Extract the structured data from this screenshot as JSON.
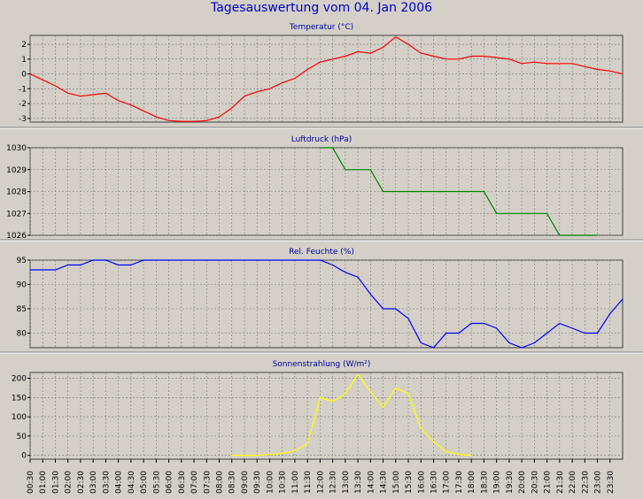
{
  "title": "Tagesauswertung vom 04. Jan 2006",
  "colors": {
    "background": "#d4d0c8",
    "plot_background": "#d4d0c8",
    "grid": "#7a7a7a",
    "temperature": "#ff0000",
    "pressure": "#008000",
    "humidity": "#0000ff",
    "radiation": "#ffff00"
  },
  "x_ticks": [
    "00:30",
    "01:00",
    "01:30",
    "02:00",
    "02:30",
    "03:00",
    "03:30",
    "04:00",
    "04:30",
    "05:00",
    "05:30",
    "06:00",
    "06:30",
    "07:00",
    "07:30",
    "08:00",
    "08:30",
    "09:00",
    "09:30",
    "10:00",
    "10:30",
    "11:00",
    "11:30",
    "12:00",
    "12:30",
    "13:00",
    "13:30",
    "14:00",
    "14:30",
    "15:00",
    "15:30",
    "16:00",
    "16:30",
    "17:00",
    "17:30",
    "18:00",
    "18:30",
    "19:00",
    "19:30",
    "20:00",
    "20:30",
    "21:00",
    "21:30",
    "22:00",
    "22:30",
    "23:00",
    "23:30"
  ],
  "chart_data": [
    {
      "type": "line",
      "title": "Temperatur (°C)",
      "color": "#ff0000",
      "ylim": [
        -3.25,
        2.6
      ],
      "yticks": [
        -3,
        -2,
        -1,
        0,
        1,
        2
      ],
      "x": [
        0,
        0.5,
        1,
        1.5,
        2,
        2.5,
        3,
        3.5,
        4,
        4.5,
        5,
        5.5,
        6,
        6.5,
        7,
        7.5,
        8,
        8.5,
        9,
        9.5,
        10,
        10.5,
        11,
        11.5,
        12,
        12.5,
        13,
        13.5,
        14,
        14.5,
        15,
        15.5,
        16,
        16.5,
        17,
        17.5,
        18,
        18.5,
        19,
        19.5,
        20,
        20.5,
        21,
        21.5,
        22,
        22.5,
        23,
        23.5
      ],
      "values": [
        0,
        -0.4,
        -0.8,
        -1.3,
        -1.5,
        -1.4,
        -1.3,
        -1.8,
        -2.1,
        -2.5,
        -2.9,
        -3.15,
        -3.2,
        -3.2,
        -3.15,
        -2.9,
        -2.3,
        -1.5,
        -1.2,
        -1,
        -0.6,
        -0.3,
        0.3,
        0.8,
        1,
        1.2,
        1.5,
        1.4,
        1.8,
        2.5,
        2,
        1.4,
        1.2,
        1,
        1,
        1.2,
        1.2,
        1.1,
        1,
        0.7,
        0.8,
        0.7,
        0.7,
        0.7,
        0.5,
        0.3,
        0.2,
        0
      ],
      "grid": true
    },
    {
      "type": "line",
      "title": "Luftdruck (hPa)",
      "color": "#008000",
      "ylim": [
        1026,
        1030
      ],
      "yticks": [
        1026,
        1027,
        1028,
        1029,
        1030
      ],
      "x": [
        11.5,
        12,
        12.5,
        13,
        13.5,
        14,
        14.5,
        15,
        15.5,
        16,
        16.5,
        17,
        17.5,
        18,
        18.5,
        19,
        19.5,
        20,
        20.5,
        21,
        21.5,
        22,
        22.5
      ],
      "values": [
        1030,
        1030,
        1029,
        1029,
        1029,
        1028,
        1028,
        1028,
        1028,
        1028,
        1028,
        1028,
        1028,
        1028,
        1027,
        1027,
        1027,
        1027,
        1027,
        1026,
        1026,
        1026,
        1026
      ],
      "grid": true
    },
    {
      "type": "line",
      "title": "Rel. Feuchte (%)",
      "color": "#0000ff",
      "ylim": [
        77,
        95
      ],
      "yticks": [
        80,
        85,
        90,
        95
      ],
      "x": [
        0,
        0.5,
        1,
        1.5,
        2,
        2.5,
        3,
        3.5,
        4,
        4.5,
        5,
        5.5,
        6,
        6.5,
        7,
        7.5,
        8,
        8.5,
        9,
        9.5,
        10,
        10.5,
        11,
        11.5,
        12,
        12.5,
        13,
        13.5,
        14,
        14.5,
        15,
        15.5,
        16,
        16.5,
        17,
        17.5,
        18,
        18.5,
        19,
        19.5,
        20,
        20.5,
        21,
        21.5,
        22,
        22.5,
        23,
        23.5
      ],
      "values": [
        93,
        93,
        93,
        94,
        94,
        95,
        95,
        94,
        94,
        95,
        95,
        95,
        95,
        95,
        95,
        95,
        95,
        95,
        95,
        95,
        95,
        95,
        95,
        95,
        94,
        92.5,
        91.5,
        88,
        85,
        85,
        83,
        78,
        77,
        80,
        80,
        82,
        82,
        81,
        78,
        77,
        78,
        80,
        82,
        81,
        80,
        80,
        84,
        87
      ],
      "grid": true
    },
    {
      "type": "line",
      "title": "Sonnenstrahlung (W/m²)",
      "color": "#ffff00",
      "ylim": [
        -10,
        215
      ],
      "yticks": [
        0,
        50,
        100,
        150,
        200
      ],
      "x": [
        8,
        8.5,
        9,
        9.5,
        10,
        10.5,
        11,
        11.5,
        12,
        12.5,
        13,
        13.5,
        14,
        14.5,
        15,
        15.5,
        16,
        16.5,
        17,
        17.5
      ],
      "values": [
        0,
        0,
        0,
        2,
        5,
        12,
        30,
        150,
        140,
        160,
        210,
        165,
        125,
        175,
        160,
        70,
        35,
        10,
        2,
        0
      ],
      "grid": true
    }
  ]
}
